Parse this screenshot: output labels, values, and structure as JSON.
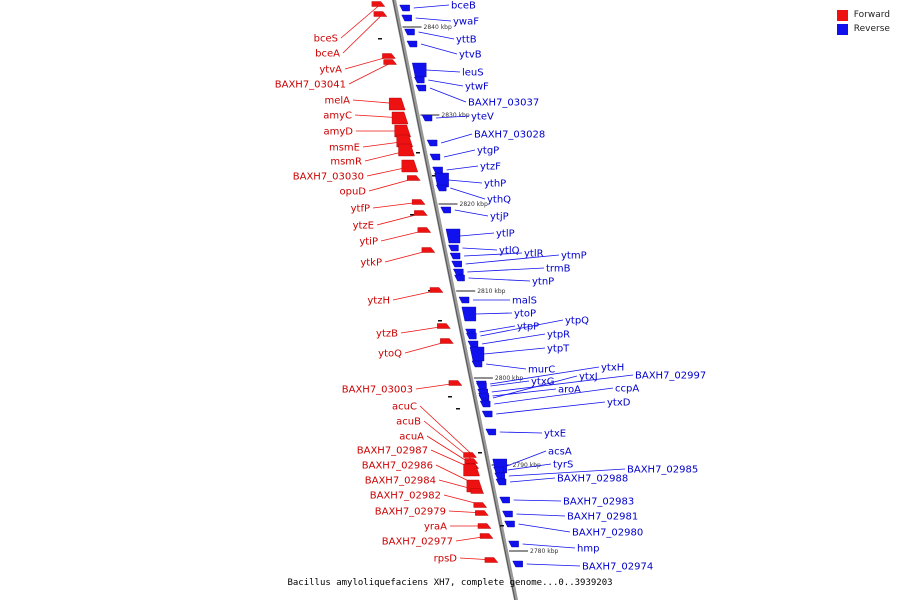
{
  "legend": {
    "forward_label": "Forward",
    "reverse_label": "Reverse",
    "forward_color": "#ee1111",
    "reverse_color": "#1111ee"
  },
  "caption": "Bacillus amyloliquefaciens XH7, complete genome...0..3939203",
  "ticks": [
    "2840 kbp",
    "2830 kbp",
    "2820 kbp",
    "2810 kbp",
    "2800 kbp",
    "2790 kbp",
    "2780 kbp"
  ],
  "forward_genes": [
    "bceS",
    "bceA",
    "ytvA",
    "BAXH7_03041",
    "melA",
    "amyC",
    "amyD",
    "msmE",
    "msmR",
    "BAXH7_03030",
    "opuD",
    "ytfP",
    "ytzE",
    "ytiP",
    "ytkP",
    "ytzH",
    "ytzB",
    "ytoQ",
    "BAXH7_03003",
    "acuC",
    "acuB",
    "acuA",
    "BAXH7_02987",
    "BAXH7_02986",
    "BAXH7_02984",
    "BAXH7_02982",
    "BAXH7_02979",
    "yraA",
    "BAXH7_02977",
    "rpsD"
  ],
  "reverse_genes": [
    "bceB",
    "ywaF",
    "yttB",
    "ytvB",
    "leuS",
    "ytwF",
    "BAXH7_03037",
    "yteV",
    "BAXH7_03028",
    "ytgP",
    "ytzF",
    "ythP",
    "ythQ",
    "ytjP",
    "ytlP",
    "ytlQ",
    "ytlR",
    "ytmP",
    "trmB",
    "ytnP",
    "malS",
    "ytoP",
    "ytpP",
    "ytpQ",
    "ytpR",
    "ytpT",
    "murC",
    "ytxH",
    "BAXH7_02997",
    "ytxG",
    "ytxJ",
    "ccpA",
    "aroA",
    "ytxD",
    "ytxE",
    "acsA",
    "tyrS",
    "BAXH7_02985",
    "BAXH7_02988",
    "BAXH7_02983",
    "BAXH7_02981",
    "BAXH7_02980",
    "hmp",
    "BAXH7_02974"
  ]
}
